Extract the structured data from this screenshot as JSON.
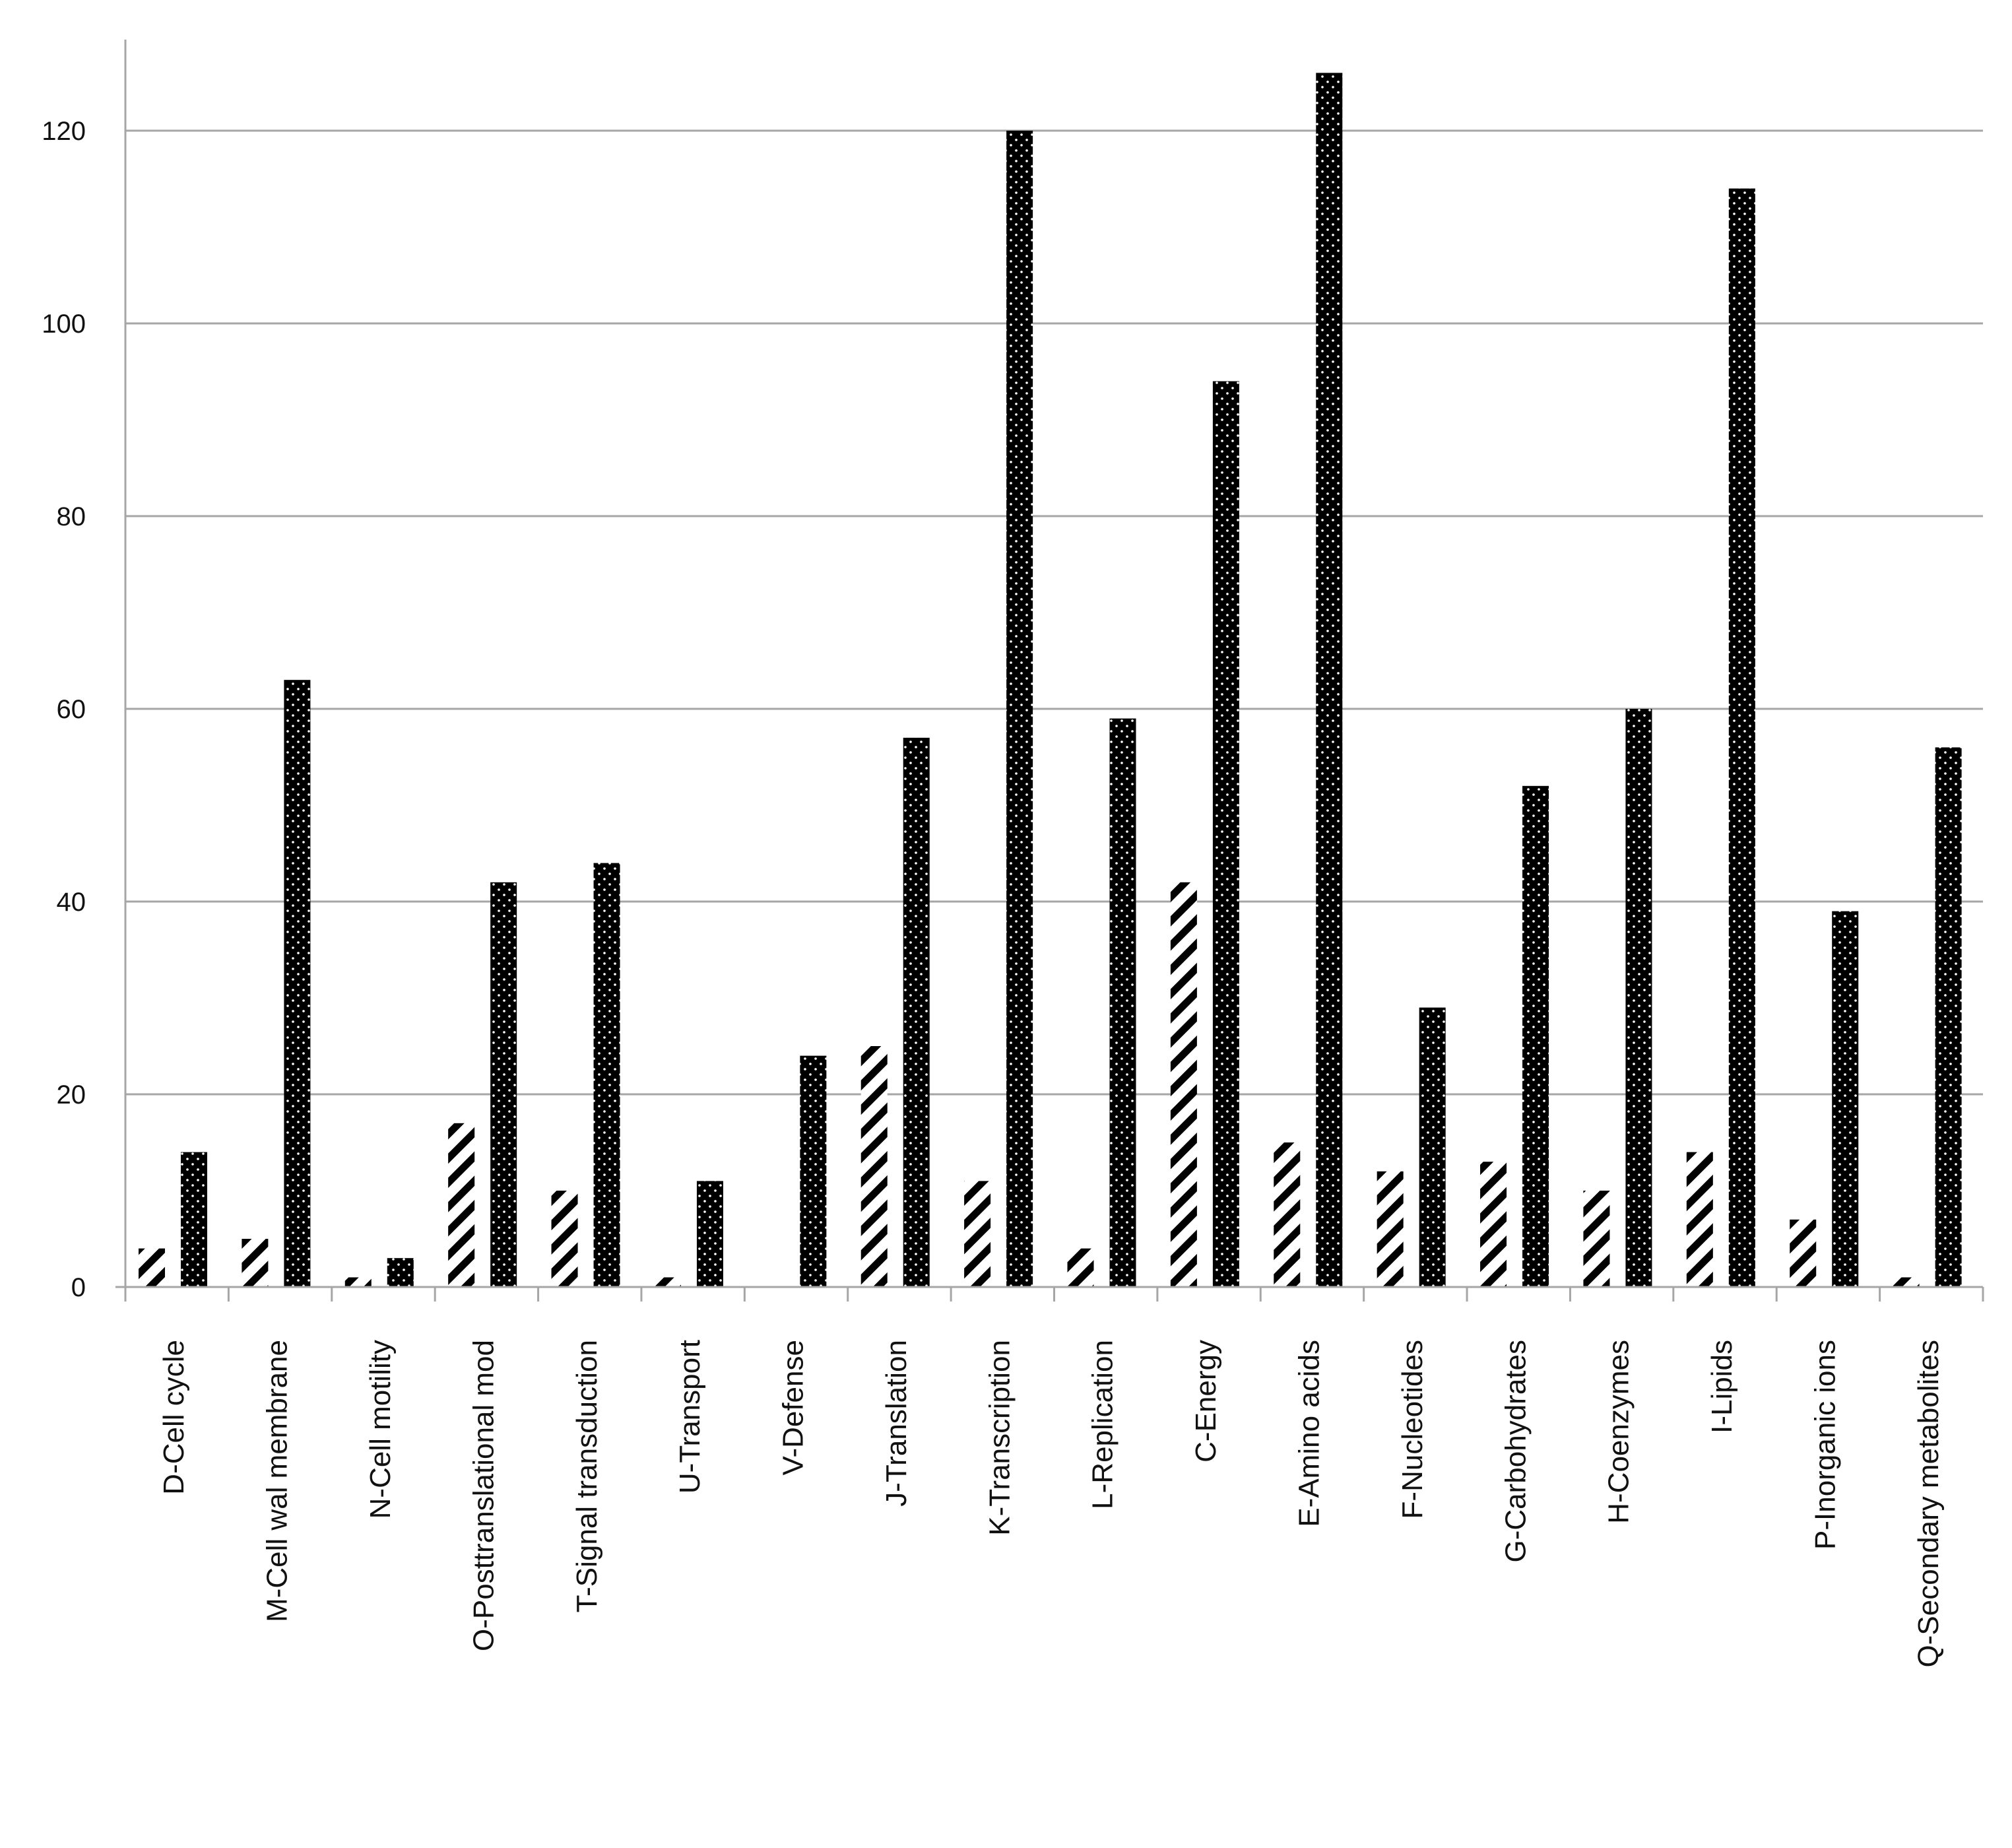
{
  "chart_data": {
    "type": "bar",
    "title": "",
    "xlabel": "",
    "ylabel": "",
    "ylim": [
      0,
      128
    ],
    "yticks": [
      0,
      20,
      40,
      60,
      80,
      100,
      120
    ],
    "grid": true,
    "legend": "none",
    "categories": [
      "D-Cell cycle",
      "M-Cell wal membrane",
      "N-Cell motility",
      "O-Posttranslational mod",
      "T-Signal transduction",
      "U-Transport",
      "V-Defense",
      "J-Translation",
      "K-Transcription",
      "L-Replication",
      "C-Energy",
      "E-Amino acids",
      "F-Nucleotides",
      "G-Carbohydrates",
      "H-Coenzymes",
      "I-Lipids",
      "P-Inorganic ions",
      "Q-Secondary metabolites"
    ],
    "series": [
      {
        "pattern": "diagonal-hatch",
        "values": [
          4,
          5,
          1,
          17,
          10,
          1,
          0,
          25,
          11,
          4,
          42,
          15,
          12,
          13,
          10,
          14,
          7,
          1
        ]
      },
      {
        "pattern": "black-dotted",
        "values": [
          14,
          63,
          3,
          42,
          44,
          11,
          24,
          57,
          120,
          59,
          94,
          126,
          29,
          52,
          60,
          114,
          39,
          56
        ]
      }
    ],
    "colors": {
      "hatch": "#000000",
      "dotted_fill": "#000000",
      "dots": "#ffffff",
      "gridline": "#a6a6a6",
      "axis": "#a6a6a6"
    }
  }
}
